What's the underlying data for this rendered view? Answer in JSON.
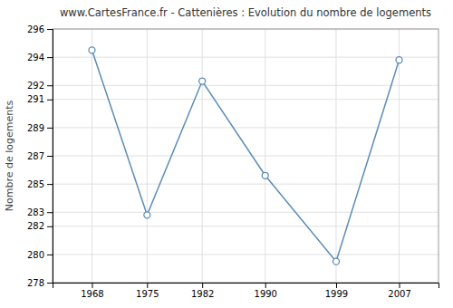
{
  "chart_data": {
    "type": "line",
    "title": "www.CartesFrance.fr - Cattenières : Evolution du nombre de logements",
    "ylabel": "Nombre de logements",
    "x": [
      1968,
      1975,
      1982,
      1990,
      1999,
      2007
    ],
    "values": [
      294.5,
      282.8,
      292.3,
      285.6,
      279.5,
      293.8
    ],
    "color": "#5b8db8",
    "marker": "circle",
    "xlim": [
      1963,
      2012
    ],
    "xticks": [
      1968,
      1975,
      1982,
      1990,
      1999,
      2007
    ],
    "ylim": [
      278,
      296
    ],
    "yticks": [
      278,
      280,
      282,
      283,
      285,
      287,
      289,
      291,
      292,
      294,
      296
    ],
    "grid": true
  }
}
